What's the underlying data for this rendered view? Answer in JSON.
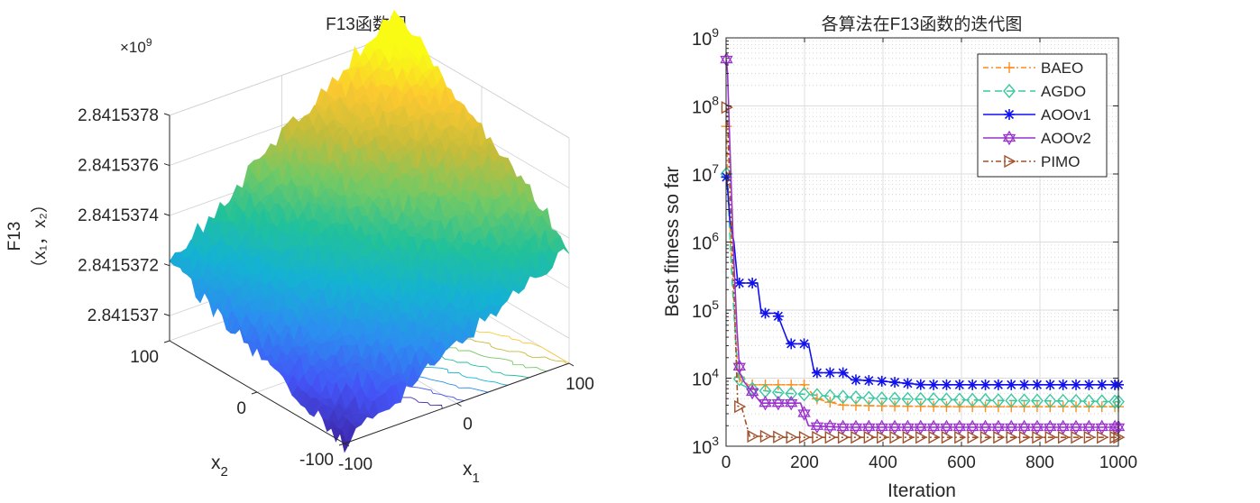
{
  "figure": {
    "left_title": "F13函数图",
    "right_title": "各算法在F13函数的迭代图"
  },
  "chart_data": [
    {
      "type": "surface",
      "title": "F13函数图",
      "zlabel_line1": "F13",
      "zlabel_line2": "（x₁，x₂）",
      "xlabel": "x",
      "xlabel_sub": "1",
      "ylabel": "x",
      "ylabel_sub": "2",
      "exponent_label": "×10",
      "exponent_power": "9",
      "x_ticks": [
        "-100",
        "0",
        "100"
      ],
      "y_ticks": [
        "-100",
        "0",
        "100"
      ],
      "z_ticks": [
        "2.841537",
        "2.8415372",
        "2.8415374",
        "2.8415376",
        "2.8415378"
      ],
      "xlim": [
        -100,
        100
      ],
      "ylim": [
        -100,
        100
      ],
      "zlim": [
        2.8415369,
        2.8415378
      ],
      "corner_values_e9": {
        "x_min_y_min": 2.8415369,
        "x_max_y_min": 2.84153737,
        "x_min_y_max": 2.84153721,
        "x_max_y_max": 2.8415379
      },
      "colormap": [
        "#3e26a8",
        "#4454f7",
        "#2c8ef0",
        "#15b2d3",
        "#21c19a",
        "#73c964",
        "#c5bc3a",
        "#fbc830",
        "#f9fb15"
      ]
    },
    {
      "type": "line",
      "title": "各算法在F13函数的迭代图",
      "xlabel": "Iteration",
      "ylabel": "Best fitness so far",
      "xlim": [
        0,
        1000
      ],
      "ylim": [
        1000,
        1000000000
      ],
      "yscale": "log",
      "grid": true,
      "legend_position": "top-right",
      "x_ticks": [
        "0",
        "200",
        "400",
        "600",
        "800",
        "1000"
      ],
      "y_tick_base": "10",
      "y_tick_exponents": [
        "3",
        "4",
        "5",
        "6",
        "7",
        "8",
        "9"
      ],
      "series": [
        {
          "name": "BAEO",
          "color": "#ff8c1a",
          "marker": "plus",
          "dash": "6,3,2,3",
          "points": [
            [
              1,
              50000000
            ],
            [
              4,
              10000000
            ],
            [
              8,
              3000000
            ],
            [
              12,
              1000000
            ],
            [
              18,
              200000
            ],
            [
              25,
              40000
            ],
            [
              30,
              12000
            ],
            [
              35,
              10000
            ],
            [
              40,
              9000
            ],
            [
              60,
              8000
            ],
            [
              100,
              8000
            ],
            [
              150,
              8000
            ],
            [
              200,
              8000
            ],
            [
              230,
              5000
            ],
            [
              260,
              4500
            ],
            [
              300,
              4000
            ],
            [
              400,
              3900
            ],
            [
              500,
              3850
            ],
            [
              600,
              3800
            ],
            [
              700,
              3800
            ],
            [
              800,
              3800
            ],
            [
              900,
              3800
            ],
            [
              1000,
              3800
            ]
          ]
        },
        {
          "name": "AGDO",
          "color": "#3cc8a0",
          "marker": "diamond",
          "dash": "8,5",
          "points": [
            [
              1,
              10000000
            ],
            [
              4,
              8000000
            ],
            [
              8,
              2000000
            ],
            [
              15,
              300000
            ],
            [
              25,
              30000
            ],
            [
              30,
              11000
            ],
            [
              40,
              8000
            ],
            [
              60,
              7000
            ],
            [
              100,
              6500
            ],
            [
              150,
              6000
            ],
            [
              200,
              5800
            ],
            [
              250,
              5500
            ],
            [
              300,
              5300
            ],
            [
              400,
              5000
            ],
            [
              500,
              4900
            ],
            [
              600,
              4800
            ],
            [
              700,
              4700
            ],
            [
              800,
              4650
            ],
            [
              900,
              4600
            ],
            [
              1000,
              4500
            ]
          ]
        },
        {
          "name": "AOOv1",
          "color": "#1111ee",
          "marker": "star",
          "dash": "",
          "points": [
            [
              1,
              9000000
            ],
            [
              5,
              5000000
            ],
            [
              10,
              2000000
            ],
            [
              20,
              1000000
            ],
            [
              30,
              250000
            ],
            [
              60,
              250000
            ],
            [
              80,
              250000
            ],
            [
              90,
              90000
            ],
            [
              130,
              90000
            ],
            [
              160,
              32000
            ],
            [
              210,
              32000
            ],
            [
              225,
              12000
            ],
            [
              300,
              12000
            ],
            [
              320,
              9500
            ],
            [
              400,
              9000
            ],
            [
              450,
              8500
            ],
            [
              500,
              8000
            ],
            [
              600,
              8000
            ],
            [
              700,
              8000
            ],
            [
              800,
              8000
            ],
            [
              900,
              8000
            ],
            [
              1000,
              8000
            ]
          ]
        },
        {
          "name": "AOOv2",
          "color": "#9932cc",
          "marker": "hexagram",
          "dash": "",
          "points": [
            [
              1,
              480000000
            ],
            [
              4,
              300000000
            ],
            [
              8,
              50000000
            ],
            [
              14,
              5000000
            ],
            [
              20,
              500000
            ],
            [
              28,
              50000
            ],
            [
              35,
              12000
            ],
            [
              45,
              9000
            ],
            [
              60,
              7000
            ],
            [
              90,
              4300
            ],
            [
              130,
              4300
            ],
            [
              165,
              4300
            ],
            [
              190,
              4300
            ],
            [
              210,
              2000
            ],
            [
              250,
              1950
            ],
            [
              300,
              1900
            ],
            [
              400,
              1900
            ],
            [
              500,
              1900
            ],
            [
              600,
              1900
            ],
            [
              700,
              1900
            ],
            [
              800,
              1900
            ],
            [
              900,
              1900
            ],
            [
              1000,
              1900
            ]
          ]
        },
        {
          "name": "PIMO",
          "color": "#a0522d",
          "marker": "triangle-right",
          "dash": "6,3,2,3",
          "points": [
            [
              1,
              95000000
            ],
            [
              5,
              40000000
            ],
            [
              10,
              5000000
            ],
            [
              20,
              200000
            ],
            [
              30,
              3900
            ],
            [
              40,
              3700
            ],
            [
              60,
              1400
            ],
            [
              100,
              1400
            ],
            [
              150,
              1350
            ],
            [
              200,
              1350
            ],
            [
              300,
              1350
            ],
            [
              400,
              1350
            ],
            [
              500,
              1350
            ],
            [
              600,
              1350
            ],
            [
              700,
              1350
            ],
            [
              800,
              1350
            ],
            [
              900,
              1350
            ],
            [
              1000,
              1350
            ]
          ]
        }
      ]
    }
  ]
}
